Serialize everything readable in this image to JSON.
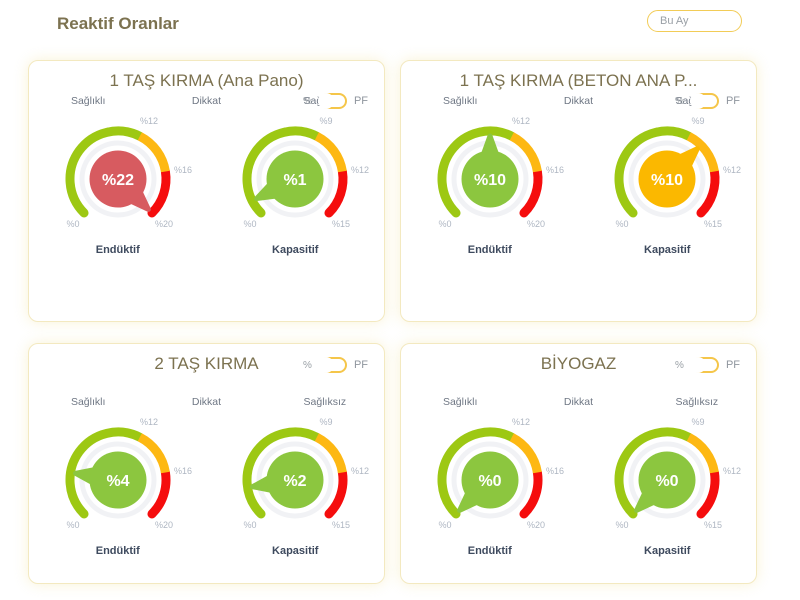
{
  "page": {
    "title": "Reaktif Oranlar",
    "period_button": "Bu Ay"
  },
  "toggle": {
    "left_label": "%",
    "right_label": "PF"
  },
  "zone_labels": {
    "healthy": "Sağlıklı",
    "attention": "Dikkat",
    "unhealthy": "Sağlıksız"
  },
  "colors": {
    "arc_green": "#9DC813",
    "arc_amber": "#FDB813",
    "arc_red": "#F50D0D",
    "bubble_green": "#8CC63F",
    "bubble_amber": "#FBB800",
    "bubble_red": "#D75B60",
    "tick": "#AEB6C2",
    "halo": "#EDEFF2",
    "value_text": "#FFFFFF"
  },
  "cards": [
    {
      "title": "1 TAŞ KIRMA (Ana Pano)",
      "gauges": [
        {
          "label": "Endüktif",
          "value": 22,
          "max": 20,
          "value_label": "%22",
          "ticks": [
            "%0",
            "%12",
            "%16",
            "%20"
          ]
        },
        {
          "label": "Kapasitif",
          "value": 1,
          "max": 15,
          "value_label": "%1",
          "ticks": [
            "%0",
            "%9",
            "%12",
            "%15"
          ]
        }
      ]
    },
    {
      "title": "1 TAŞ KIRMA (BETON ANA P...",
      "gauges": [
        {
          "label": "Endüktif",
          "value": 10,
          "max": 20,
          "value_label": "%10",
          "ticks": [
            "%0",
            "%12",
            "%16",
            "%20"
          ]
        },
        {
          "label": "Kapasitif",
          "value": 10,
          "max": 15,
          "value_label": "%10",
          "ticks": [
            "%0",
            "%9",
            "%12",
            "%15"
          ]
        }
      ]
    },
    {
      "title": "2 TAŞ KIRMA",
      "gauges": [
        {
          "label": "Endüktif",
          "value": 4,
          "max": 20,
          "value_label": "%4",
          "ticks": [
            "%0",
            "%12",
            "%16",
            "%20"
          ]
        },
        {
          "label": "Kapasitif",
          "value": 2,
          "max": 15,
          "value_label": "%2",
          "ticks": [
            "%0",
            "%9",
            "%12",
            "%15"
          ]
        }
      ]
    },
    {
      "title": "BİYOGAZ",
      "gauges": [
        {
          "label": "Endüktif",
          "value": 0,
          "max": 20,
          "value_label": "%0",
          "ticks": [
            "%0",
            "%12",
            "%16",
            "%20"
          ]
        },
        {
          "label": "Kapasitif",
          "value": 0,
          "max": 15,
          "value_label": "%0",
          "ticks": [
            "%0",
            "%9",
            "%12",
            "%15"
          ]
        }
      ]
    }
  ]
}
